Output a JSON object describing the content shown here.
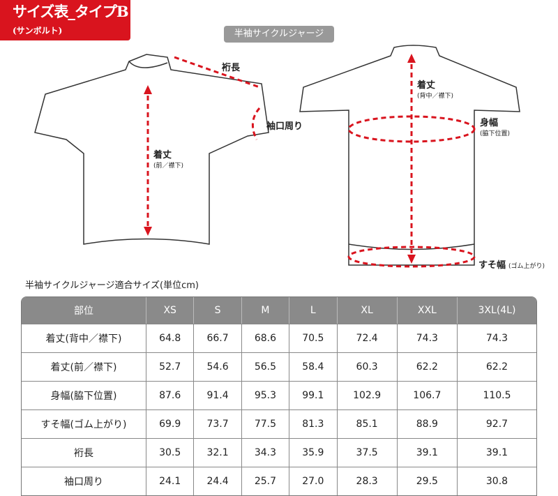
{
  "header": {
    "title": "サイズ表_タイプB",
    "subtitle": "(サンボルト)",
    "product": "半袖サイクルジャージ"
  },
  "figure": {
    "sleeve_length": "裄長",
    "cuff": "袖口周り",
    "front_length": "着丈",
    "front_length_note": "(前／襟下)",
    "back_length": "着丈",
    "back_length_note": "(背中／襟下)",
    "chest": "身幅",
    "chest_note": "(脇下位置)",
    "hem": "すそ幅",
    "hem_note": "(ゴム上がり)",
    "accent": "#d9141e"
  },
  "table": {
    "caption": "半袖サイクルジャージ適合サイズ(単位cm)",
    "headers": [
      "部位",
      "XS",
      "S",
      "M",
      "L",
      "XL",
      "XXL",
      "3XL(4L)"
    ],
    "rows": [
      [
        "着丈(背中／襟下)",
        "64.8",
        "66.7",
        "68.6",
        "70.5",
        "72.4",
        "74.3",
        "74.3"
      ],
      [
        "着丈(前／襟下)",
        "52.7",
        "54.6",
        "56.5",
        "58.4",
        "60.3",
        "62.2",
        "62.2"
      ],
      [
        "身幅(脇下位置)",
        "87.6",
        "91.4",
        "95.3",
        "99.1",
        "102.9",
        "106.7",
        "110.5"
      ],
      [
        "すそ幅(ゴム上がり)",
        "69.9",
        "73.7",
        "77.5",
        "81.3",
        "85.1",
        "88.9",
        "92.7"
      ],
      [
        "裄長",
        "30.5",
        "32.1",
        "34.3",
        "35.9",
        "37.5",
        "39.1",
        "39.1"
      ],
      [
        "袖口周り",
        "24.1",
        "24.4",
        "25.7",
        "27.0",
        "28.3",
        "29.5",
        "30.8"
      ]
    ]
  }
}
